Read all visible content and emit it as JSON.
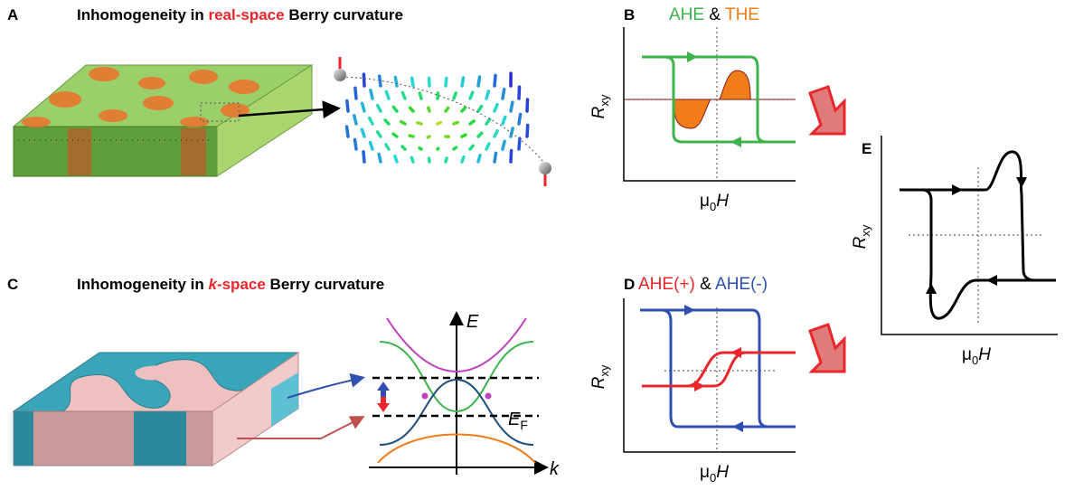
{
  "panels": {
    "A": {
      "label": "A",
      "title": [
        "Inhomogeneity in",
        "real-space",
        "Berry curvature"
      ]
    },
    "B": {
      "label": "B",
      "legend": [
        "AHE",
        "&",
        "THE"
      ],
      "y_axis": [
        "R",
        "xy"
      ],
      "x_axis": [
        "μ",
        "0",
        "H"
      ]
    },
    "C": {
      "label": "C",
      "title": [
        "Inhomogeneity in",
        "k",
        "-space",
        "Berry curvature"
      ],
      "band_labels": {
        "energy": "E",
        "fermi": [
          "E",
          "F"
        ],
        "momentum": "k"
      }
    },
    "D": {
      "label": "D",
      "legend": [
        "AHE(+)",
        "&",
        "AHE(-)"
      ],
      "y_axis": [
        "R",
        "xy"
      ],
      "x_axis": [
        "μ",
        "0",
        "H"
      ]
    },
    "E": {
      "label": "E",
      "y_axis": [
        "R",
        "xy"
      ],
      "x_axis": [
        "μ",
        "0",
        "H"
      ]
    }
  }
}
